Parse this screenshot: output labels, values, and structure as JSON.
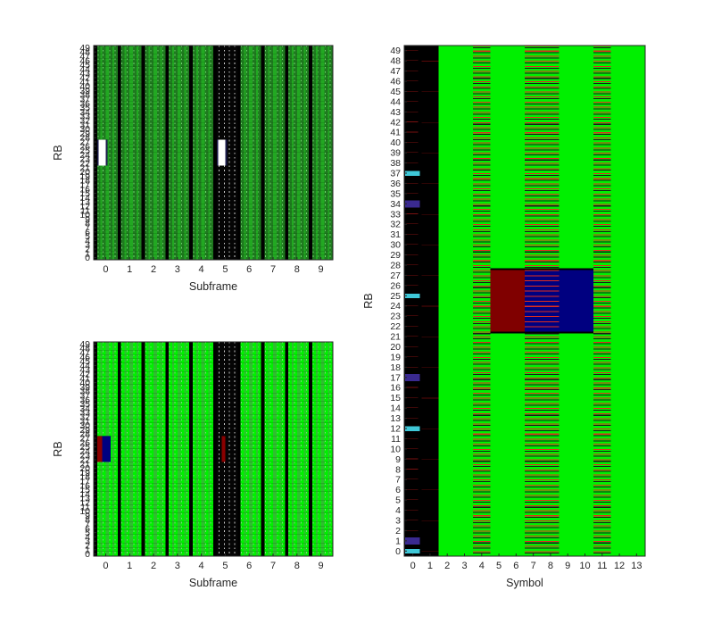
{
  "chart_data": [
    {
      "id": "top-left",
      "type": "heatmap",
      "title": "",
      "xlabel": "Subframe",
      "ylabel": "RB",
      "x_ticks": [
        0,
        1,
        2,
        3,
        4,
        5,
        6,
        7,
        8,
        9
      ],
      "y_ticks": [
        0,
        1,
        2,
        3,
        4,
        5,
        6,
        7,
        8,
        9,
        10,
        11,
        12,
        13,
        14,
        15,
        16,
        17,
        18,
        19,
        20,
        21,
        22,
        23,
        24,
        25,
        26,
        27,
        28,
        29,
        30,
        31,
        32,
        33,
        34,
        35,
        36,
        37,
        38,
        39,
        40,
        41,
        42,
        43,
        44,
        45,
        46,
        47,
        48,
        49
      ],
      "xlim": [
        -0.5,
        9.5
      ],
      "ylim": [
        -0.5,
        49.5
      ],
      "subframes": 10,
      "symbols_per_subframe": 14,
      "rbs": 50,
      "colors": {
        "base": "#1f7a1f",
        "control": "#000000",
        "ref": "#22a822",
        "stripe": "#6fd26f",
        "highlight": "#ffffff",
        "highlight_edge": "#1a1a4a"
      },
      "black_subframes": [
        5
      ],
      "highlight_regions": [
        {
          "subframe": 0,
          "rb_start": 22,
          "rb_end": 27
        },
        {
          "subframe": 5,
          "rb_start": 22,
          "rb_end": 27
        }
      ]
    },
    {
      "id": "bottom-left",
      "type": "heatmap",
      "title": "",
      "xlabel": "Subframe",
      "ylabel": "RB",
      "x_ticks": [
        0,
        1,
        2,
        3,
        4,
        5,
        6,
        7,
        8,
        9
      ],
      "y_ticks": [
        0,
        1,
        2,
        3,
        4,
        5,
        6,
        7,
        8,
        9,
        10,
        11,
        12,
        13,
        14,
        15,
        16,
        17,
        18,
        19,
        20,
        21,
        22,
        23,
        24,
        25,
        26,
        27,
        28,
        29,
        30,
        31,
        32,
        33,
        34,
        35,
        36,
        37,
        38,
        39,
        40,
        41,
        42,
        43,
        44,
        45,
        46,
        47,
        48,
        49
      ],
      "xlim": [
        -0.5,
        9.5
      ],
      "ylim": [
        -0.5,
        49.5
      ],
      "subframes": 10,
      "symbols_per_subframe": 14,
      "rbs": 50,
      "colors": {
        "base": "#00f000",
        "control": "#000000",
        "ref": "#2fbf2f",
        "stripe": "#7ad87a",
        "pss": "#8b0000",
        "sss": "#000080"
      },
      "black_subframes": [
        5
      ],
      "sync_regions": [
        {
          "subframe": 0,
          "rb_start": 22,
          "rb_end": 27,
          "color": "#000080",
          "color2": "#8b0000"
        },
        {
          "subframe": 5,
          "rb_start": 22,
          "rb_end": 27,
          "color": "#8b0000",
          "color2": "#8b0000"
        }
      ]
    },
    {
      "id": "right",
      "type": "heatmap",
      "title": "",
      "xlabel": "Symbol",
      "ylabel": "RB",
      "x_ticks": [
        0,
        1,
        2,
        3,
        4,
        5,
        6,
        7,
        8,
        9,
        10,
        11,
        12,
        13
      ],
      "y_ticks": [
        0,
        1,
        2,
        3,
        4,
        5,
        6,
        7,
        8,
        9,
        10,
        11,
        12,
        13,
        14,
        15,
        16,
        17,
        18,
        19,
        20,
        21,
        22,
        23,
        24,
        25,
        26,
        27,
        28,
        29,
        30,
        31,
        32,
        33,
        34,
        35,
        36,
        37,
        38,
        39,
        40,
        41,
        42,
        43,
        44,
        45,
        46,
        47,
        48,
        49
      ],
      "xlim": [
        -0.5,
        13.5
      ],
      "ylim": [
        -0.5,
        49.5
      ],
      "colors": {
        "pdsch": "#00f000",
        "pdcch": "#000000",
        "ref_red": "#e0301e",
        "ref_black": "#1a1a1a",
        "pss": "#800000",
        "sss": "#000080",
        "cyan": "#3fc8d8",
        "purple": "#3a2a90"
      },
      "control_symbols": [
        0,
        1
      ],
      "crs_symbols": [
        4,
        7,
        8,
        11
      ],
      "sync_block": {
        "rb_start": 22,
        "rb_end": 27,
        "pss_symbols": [
          5,
          6
        ],
        "mixed_symbols": [
          7,
          8
        ],
        "sss_symbols": [
          9,
          10
        ]
      },
      "cyan_rbs": [
        0,
        12,
        25,
        37
      ],
      "purple_rbs": [
        1,
        17,
        34
      ]
    }
  ]
}
